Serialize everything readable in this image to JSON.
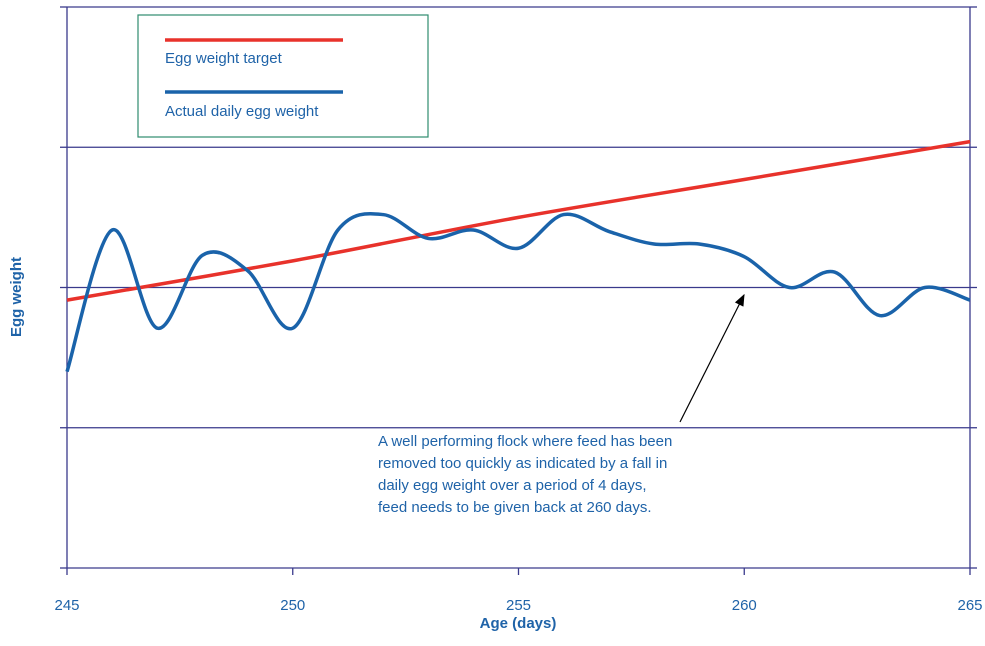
{
  "chart_data": {
    "type": "line",
    "xlabel": "Age (days)",
    "ylabel": "Egg weight",
    "xlim": [
      245,
      265
    ],
    "xticks": [
      245,
      250,
      255,
      260,
      265
    ],
    "ylim": [
      0,
      4
    ],
    "yticks": [
      0,
      1,
      2,
      3,
      4
    ],
    "grid": true,
    "legend": "upper left",
    "series": [
      {
        "name": "Egg weight target",
        "color": "#e8322b",
        "x": [
          245,
          250,
          255,
          260,
          265
        ],
        "values": [
          1.91,
          2.19,
          2.5,
          2.77,
          3.04
        ]
      },
      {
        "name": "Actual daily egg weight",
        "color": "#1a63aa",
        "x": [
          245,
          246,
          247,
          248,
          249,
          250,
          251,
          252,
          253,
          254,
          255,
          256,
          257,
          258,
          259,
          260,
          261,
          262,
          263,
          264,
          265
        ],
        "values": [
          1.4,
          2.41,
          1.71,
          2.23,
          2.12,
          1.71,
          2.41,
          2.52,
          2.35,
          2.41,
          2.28,
          2.52,
          2.4,
          2.31,
          2.31,
          2.22,
          2.0,
          2.11,
          1.8,
          2.0,
          1.91
        ]
      }
    ],
    "annotation": [
      "A well performing flock where feed has been",
      "removed too quickly as indicated by a fall in",
      "daily egg weight over a period of 4 days,",
      "feed needs to be given back at 260 days."
    ]
  }
}
